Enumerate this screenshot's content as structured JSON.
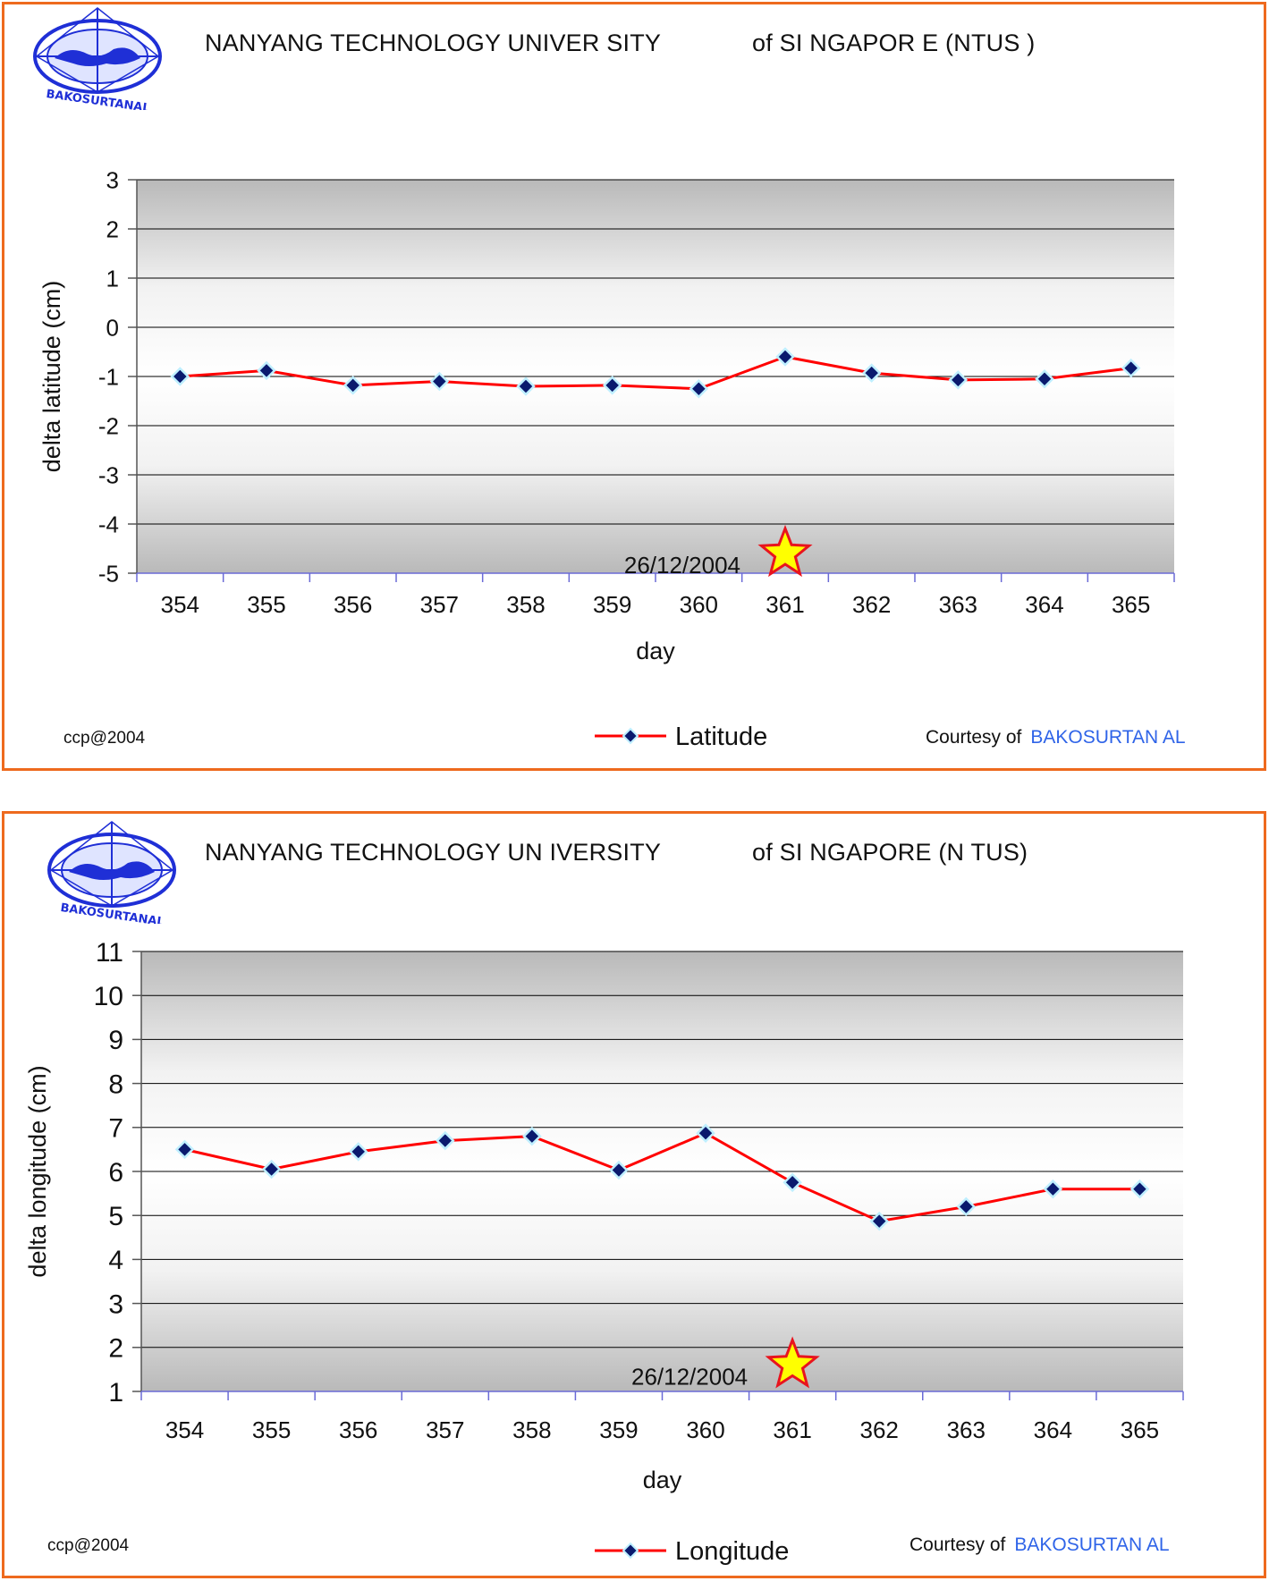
{
  "panels": [
    {
      "logo": {
        "icon": "bakosurtanal-globe-logo",
        "text": "BAKOSURTANAL"
      },
      "header": {
        "institution": "NANYANG TECHNOLOGY UNIVER SITY",
        "country": "of  SI  NGAPOR E    (NTUS  )"
      },
      "footer": {
        "copyright": "ccp@2004",
        "courtesy": "Courtesy of",
        "org": "BAKOSURTAN     AL"
      },
      "event": {
        "label": "26/12/2004",
        "day": 361,
        "level": -4.6,
        "star_fill": "#ffff00",
        "star_stroke": "#e8141e"
      }
    },
    {
      "logo": {
        "icon": "bakosurtanal-globe-logo",
        "text": "BAKOSURTANAL"
      },
      "header": {
        "institution": "NANYANG TECHNOLOGY UN IVERSITY",
        "country": "of  SI  NGAPORE     (N TUS)"
      },
      "footer": {
        "copyright": "ccp@2004",
        "courtesy": "Courtesy of",
        "org": "BAKOSURTAN     AL"
      },
      "event": {
        "label": "26/12/2004",
        "day": 361,
        "level": 1.6,
        "star_fill": "#ffff00",
        "star_stroke": "#e8141e"
      }
    }
  ],
  "colors": {
    "border": "#ee6a1e",
    "line": "#ff0000",
    "marker": "#0a1a6e",
    "marker_halo": "#bfefff",
    "accent": "#2f64e8"
  },
  "chart_data": [
    {
      "type": "line",
      "title": "",
      "xlabel": "day",
      "ylabel": "delta latitude (cm)",
      "categories": [
        "354",
        "355",
        "356",
        "357",
        "358",
        "359",
        "360",
        "361",
        "362",
        "363",
        "364",
        "365"
      ],
      "series": [
        {
          "name": "Latitude",
          "values": [
            -1.0,
            -0.88,
            -1.18,
            -1.1,
            -1.2,
            -1.18,
            -1.25,
            -0.6,
            -0.93,
            -1.07,
            -1.05,
            -0.83
          ]
        }
      ],
      "ylim": [
        -5,
        3
      ],
      "yticks": [
        3,
        2,
        1,
        0,
        -1,
        -2,
        -3,
        -4,
        -5
      ],
      "grid": true,
      "legend": "bottom-center"
    },
    {
      "type": "line",
      "title": "",
      "xlabel": "day",
      "ylabel": "delta longitude (cm)",
      "categories": [
        "354",
        "355",
        "356",
        "357",
        "358",
        "359",
        "360",
        "361",
        "362",
        "363",
        "364",
        "365"
      ],
      "series": [
        {
          "name": "Longitude",
          "values": [
            6.5,
            6.05,
            6.45,
            6.7,
            6.8,
            6.03,
            6.87,
            5.75,
            4.87,
            5.2,
            5.6,
            5.6
          ]
        }
      ],
      "ylim": [
        1,
        11
      ],
      "yticks": [
        11,
        10,
        9,
        8,
        7,
        6,
        5,
        4,
        3,
        2,
        1
      ],
      "grid": true,
      "legend": "bottom-center"
    }
  ]
}
